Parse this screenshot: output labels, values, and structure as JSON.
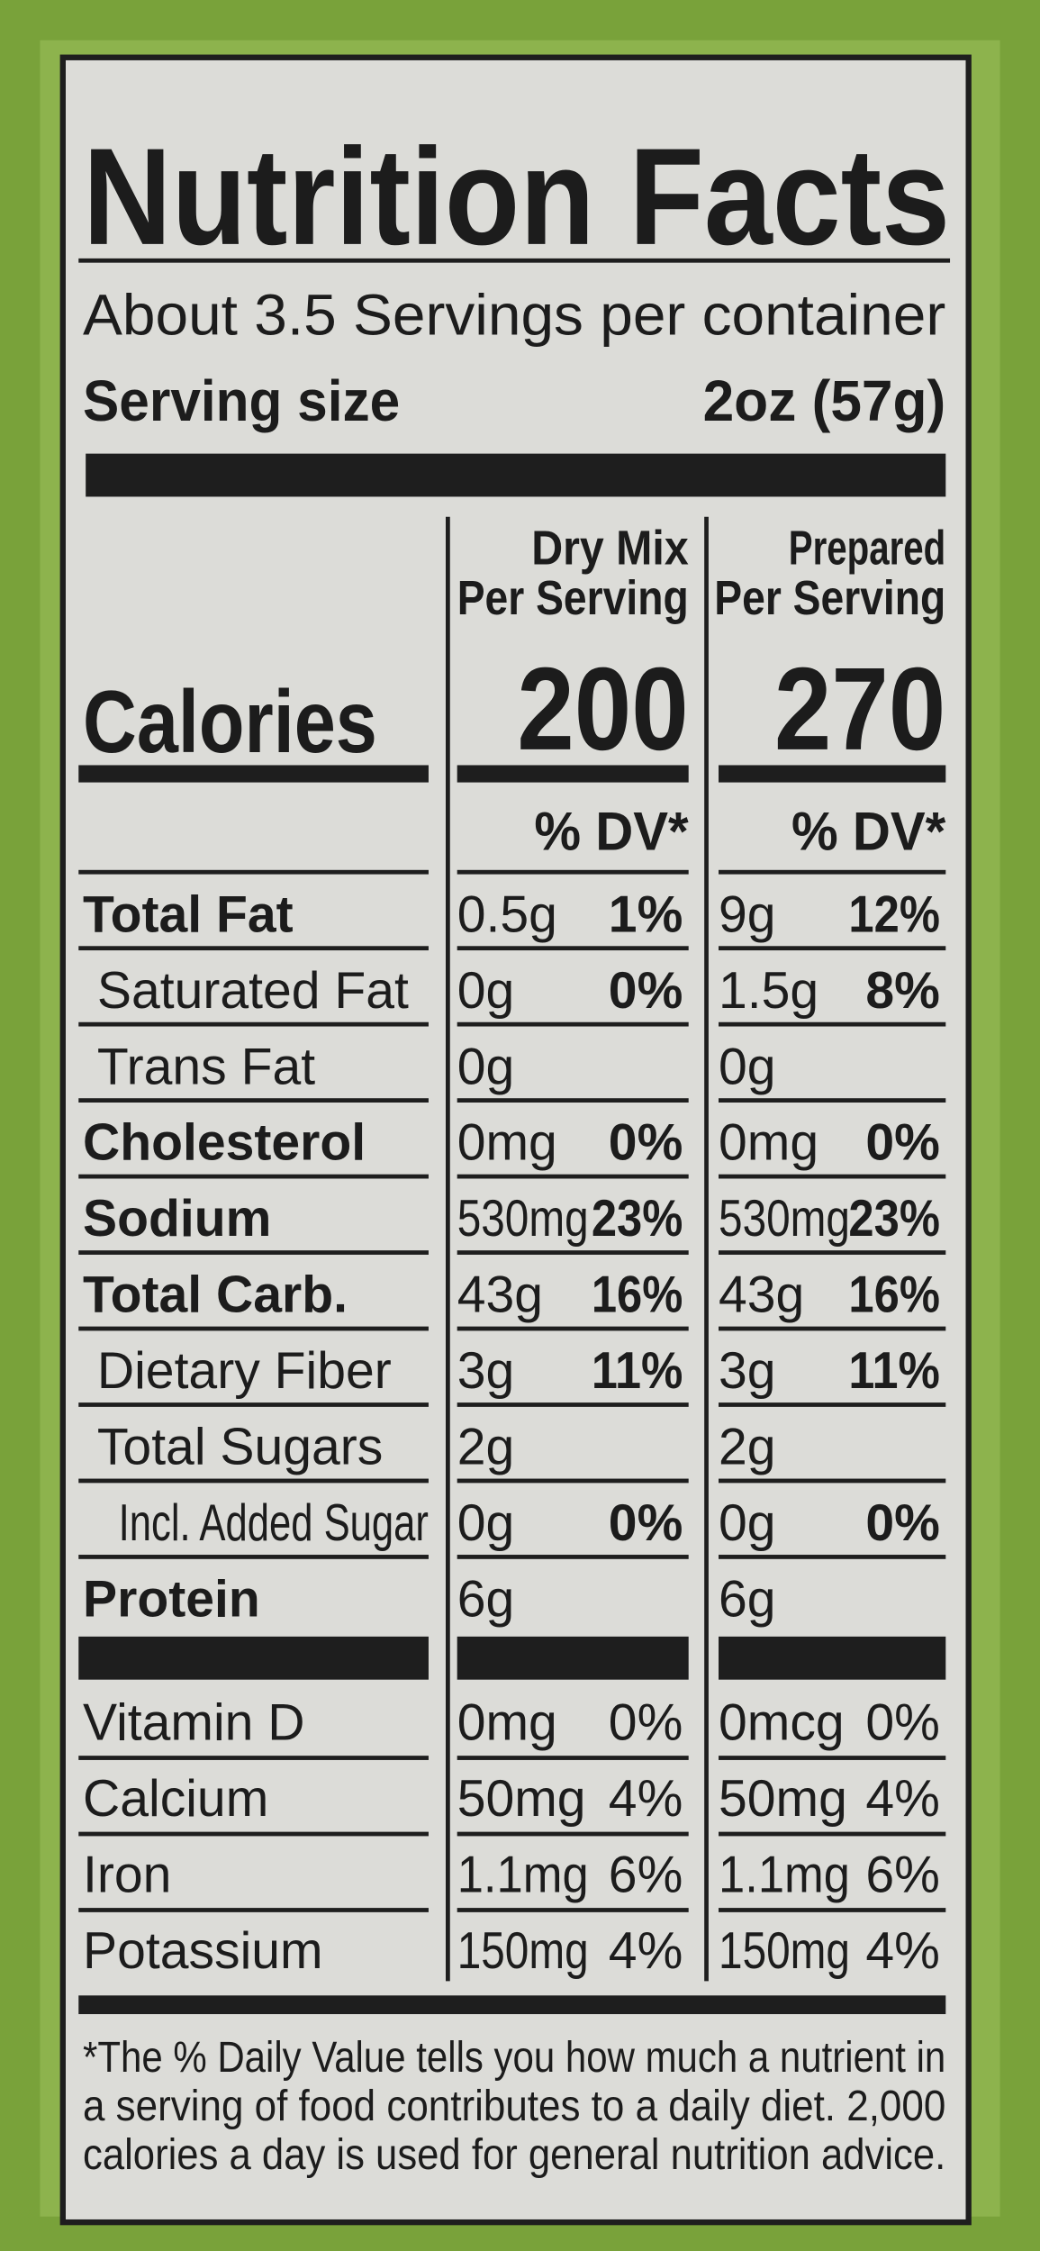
{
  "title": "Nutrition Facts",
  "servings": "About 3.5 Servings per container",
  "serving_size": {
    "label": "Serving size",
    "value": "2oz (57g)"
  },
  "columns": [
    {
      "line1": "Dry Mix",
      "line2": "Per Serving",
      "calories": "200",
      "dv_header": "% DV*"
    },
    {
      "line1": "Prepared",
      "line2": "Per Serving",
      "calories": "270",
      "dv_header": "% DV*"
    }
  ],
  "calories_label": "Calories",
  "nutrients": [
    {
      "name": "Total Fat",
      "values": [
        {
          "amount": "0.5g",
          "dv": "1%"
        },
        {
          "amount": "9g",
          "dv": "12%"
        }
      ]
    },
    {
      "name": "Saturated Fat",
      "values": [
        {
          "amount": "0g",
          "dv": "0%"
        },
        {
          "amount": "1.5g",
          "dv": "8%"
        }
      ]
    },
    {
      "name": "Trans Fat",
      "values": [
        {
          "amount": "0g"
        },
        {
          "amount": "0g"
        }
      ]
    },
    {
      "name": "Cholesterol",
      "values": [
        {
          "amount": "0mg",
          "dv": "0%"
        },
        {
          "amount": "0mg",
          "dv": "0%"
        }
      ]
    },
    {
      "name": "Sodium",
      "values": [
        {
          "amount": "530mg",
          "dv": "23%"
        },
        {
          "amount": "530mg",
          "dv": "23%"
        }
      ]
    },
    {
      "name": "Total Carb.",
      "values": [
        {
          "amount": "43g",
          "dv": "16%"
        },
        {
          "amount": "43g",
          "dv": "16%"
        }
      ]
    },
    {
      "name": "Dietary Fiber",
      "values": [
        {
          "amount": "3g",
          "dv": "11%"
        },
        {
          "amount": "3g",
          "dv": "11%"
        }
      ]
    },
    {
      "name": "Total Sugars",
      "values": [
        {
          "amount": "2g"
        },
        {
          "amount": "2g"
        }
      ]
    },
    {
      "name": "Incl. Added Sugar",
      "values": [
        {
          "amount": "0g",
          "dv": "0%"
        },
        {
          "amount": "0g",
          "dv": "0%"
        }
      ]
    },
    {
      "name": "Protein",
      "values": [
        {
          "amount": "6g"
        },
        {
          "amount": "6g"
        }
      ]
    }
  ],
  "vitamins": [
    {
      "name": "Vitamin D",
      "values": [
        {
          "amount": "0mg",
          "dv": "0%"
        },
        {
          "amount": "0mcg",
          "dv": "0%"
        }
      ]
    },
    {
      "name": "Calcium",
      "values": [
        {
          "amount": "50mg",
          "dv": "4%"
        },
        {
          "amount": "50mg",
          "dv": "4%"
        }
      ]
    },
    {
      "name": "Iron",
      "values": [
        {
          "amount": "1.1mg",
          "dv": "6%"
        },
        {
          "amount": "1.1mg",
          "dv": "6%"
        }
      ]
    },
    {
      "name": "Potassium",
      "values": [
        {
          "amount": "150mg",
          "dv": "4%"
        },
        {
          "amount": "150mg",
          "dv": "4%"
        }
      ]
    }
  ],
  "footnote": [
    "*The % Daily Value tells you how much a nutrient in",
    "a serving of food contributes to a daily diet. 2,000",
    "calories a day is used for general nutrition advice."
  ]
}
